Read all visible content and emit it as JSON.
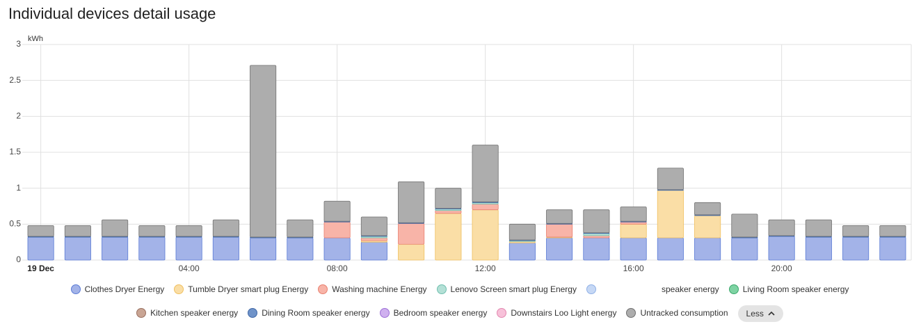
{
  "chart_data": {
    "type": "bar",
    "stacked": true,
    "title": "Individual devices detail usage",
    "y_label": "kWh",
    "categories": [
      "19 Dec",
      null,
      null,
      null,
      "04:00",
      null,
      null,
      null,
      "08:00",
      null,
      null,
      null,
      "12:00",
      null,
      null,
      null,
      "16:00",
      null,
      null,
      null,
      "20:00",
      null,
      null,
      null
    ],
    "ylim": [
      0,
      3
    ],
    "yticks": [
      0,
      0.5,
      1,
      1.5,
      2,
      2.5,
      3
    ],
    "grid": true,
    "series": [
      {
        "name": "Clothes Dryer Energy",
        "color": "#a3b3e8",
        "stroke": "#5b7bd5",
        "values": [
          0.32,
          0.32,
          0.32,
          0.32,
          0.32,
          0.32,
          0.31,
          0.31,
          0.31,
          0.25,
          0,
          0,
          0,
          0.24,
          0.31,
          0.31,
          0.31,
          0.31,
          0.31,
          0.31,
          0.33,
          0.32,
          0.32,
          0.32
        ]
      },
      {
        "name": "Tumble Dryer smart plug Energy",
        "color": "#fadea6",
        "stroke": "#f0c060",
        "values": [
          0,
          0,
          0,
          0,
          0,
          0,
          0,
          0,
          0,
          0.02,
          0.22,
          0.65,
          0.7,
          0.02,
          0.01,
          0,
          0.19,
          0.66,
          0.31,
          0,
          0,
          0,
          0,
          0
        ]
      },
      {
        "name": "Washing machine Energy",
        "color": "#f8b4a8",
        "stroke": "#e8806f",
        "values": [
          0,
          0,
          0,
          0,
          0,
          0,
          0,
          0,
          0.22,
          0.04,
          0.29,
          0.04,
          0.08,
          0,
          0.18,
          0.03,
          0.03,
          0,
          0,
          0,
          0,
          0,
          0,
          0
        ]
      },
      {
        "name": "Lenovo Screen smart plug Energy",
        "color": "#b4e0d6",
        "stroke": "#6fbfae",
        "values": [
          0,
          0,
          0,
          0,
          0,
          0,
          0,
          0,
          0,
          0.02,
          0,
          0.02,
          0.02,
          0.01,
          0,
          0.03,
          0,
          0,
          0,
          0,
          0,
          0,
          0,
          0
        ]
      },
      {
        "name": "speaker energy",
        "color": "#c6d8f5",
        "stroke": "#8fb0e6",
        "values": [
          0,
          0,
          0,
          0,
          0,
          0,
          0,
          0,
          0,
          0,
          0,
          0,
          0,
          0,
          0,
          0,
          0,
          0,
          0,
          0,
          0,
          0,
          0,
          0
        ]
      },
      {
        "name": "Living Room speaker energy",
        "color": "#7ed3a3",
        "stroke": "#3aa86b",
        "values": [
          0,
          0,
          0,
          0,
          0,
          0,
          0,
          0,
          0,
          0,
          0,
          0,
          0,
          0,
          0,
          0,
          0,
          0,
          0,
          0,
          0,
          0,
          0,
          0
        ]
      },
      {
        "name": "Kitchen speaker energy",
        "color": "#c9a594",
        "stroke": "#9a7060",
        "values": [
          0,
          0,
          0,
          0,
          0,
          0,
          0,
          0,
          0,
          0,
          0,
          0,
          0,
          0,
          0,
          0,
          0,
          0,
          0,
          0,
          0,
          0,
          0,
          0
        ]
      },
      {
        "name": "Dining Room speaker energy",
        "color": "#6f93c9",
        "stroke": "#3f67a6",
        "values": [
          0.01,
          0.01,
          0.01,
          0.01,
          0.01,
          0.01,
          0.01,
          0.01,
          0.01,
          0.01,
          0.01,
          0.01,
          0.01,
          0.01,
          0.01,
          0.01,
          0.01,
          0.01,
          0.01,
          0.01,
          0.01,
          0.01,
          0.01,
          0.01
        ]
      },
      {
        "name": "Bedroom speaker energy",
        "color": "#cfb0ef",
        "stroke": "#9c6fd6",
        "values": [
          0,
          0,
          0,
          0,
          0,
          0,
          0,
          0,
          0,
          0,
          0,
          0,
          0,
          0,
          0,
          0,
          0,
          0,
          0,
          0,
          0,
          0,
          0,
          0
        ]
      },
      {
        "name": "Downstairs Loo Light energy",
        "color": "#f7c1d9",
        "stroke": "#e387b0",
        "values": [
          0,
          0,
          0,
          0,
          0,
          0,
          0,
          0,
          0,
          0,
          0,
          0,
          0,
          0,
          0,
          0,
          0,
          0,
          0,
          0,
          0,
          0,
          0,
          0
        ]
      },
      {
        "name": "Untracked consumption",
        "color": "#adadad",
        "stroke": "#707070",
        "values": [
          0.15,
          0.15,
          0.23,
          0.15,
          0.15,
          0.23,
          2.39,
          0.24,
          0.28,
          0.26,
          0.57,
          0.28,
          0.79,
          0.22,
          0.19,
          0.32,
          0.2,
          0.3,
          0.17,
          0.32,
          0.22,
          0.23,
          0.15,
          0.15
        ]
      }
    ],
    "toggle": "Less"
  }
}
